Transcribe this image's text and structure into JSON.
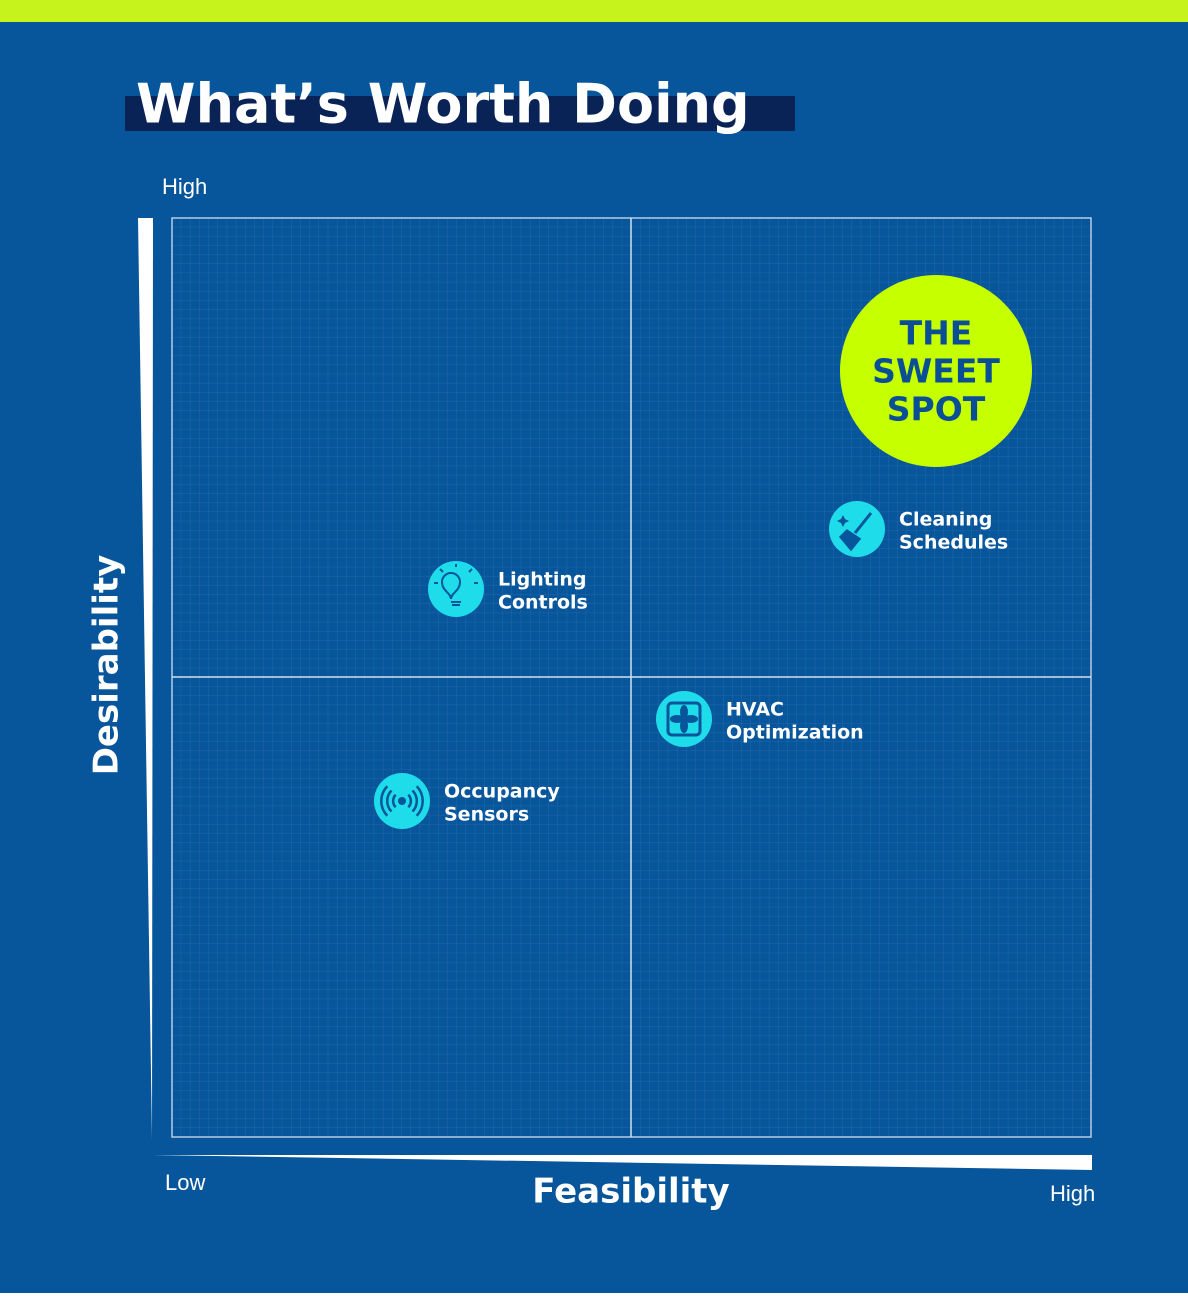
{
  "title": "What’s Worth Doing",
  "y_axis": {
    "label": "Desirability",
    "high": "High"
  },
  "x_axis": {
    "label": "Feasibility",
    "low": "Low",
    "high": "High"
  },
  "sweet_spot": {
    "lines": [
      "THE",
      "SWEET",
      "SPOT"
    ]
  },
  "items": [
    {
      "lines": [
        "Cleaning",
        "Schedules"
      ]
    },
    {
      "lines": [
        "Lighting",
        "Controls"
      ]
    },
    {
      "lines": [
        "HVAC",
        "Optimization"
      ]
    },
    {
      "lines": [
        "Occupancy",
        "Sensors"
      ]
    }
  ]
}
